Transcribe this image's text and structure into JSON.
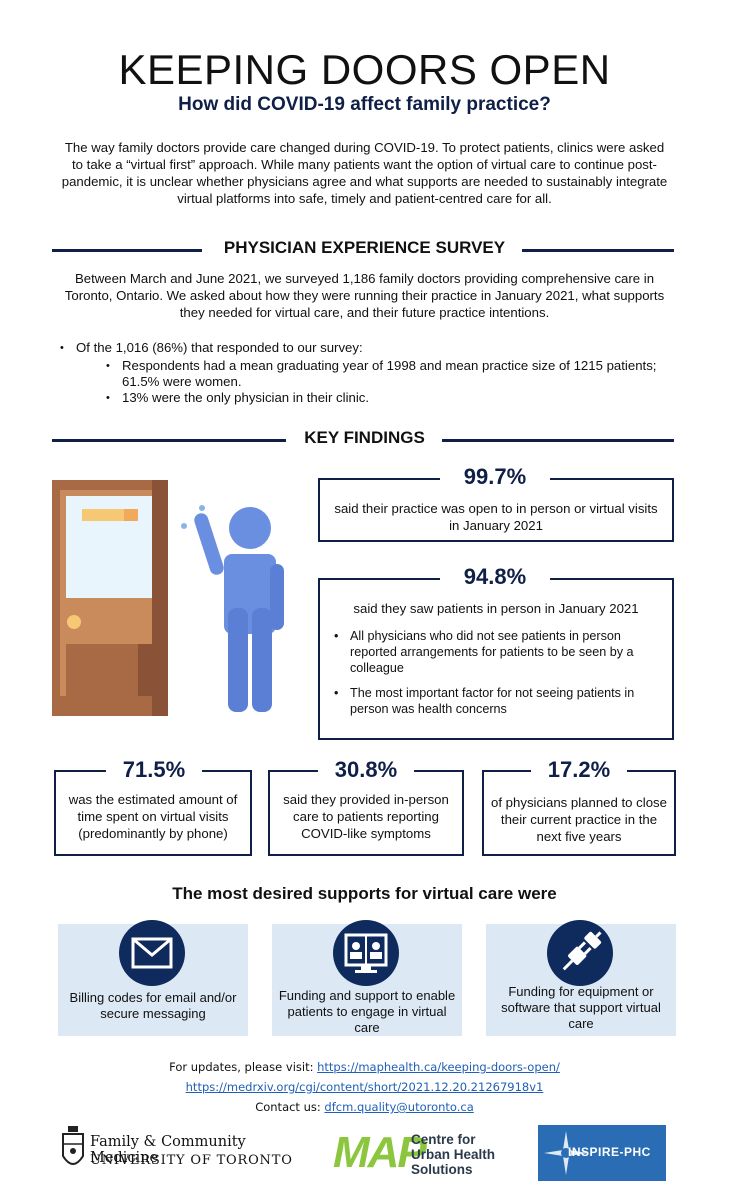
{
  "header": {
    "title": "KEEPING DOORS OPEN",
    "subtitle": "How did COVID-19 affect family practice?",
    "intro": "The way family doctors provide care changed during COVID-19. To protect patients, clinics were asked to take a “virtual first” approach. While many patients want the option of virtual care to continue post-pandemic, it is unclear whether physicians agree and what supports are needed to sustainably integrate virtual platforms into safe, timely and patient-centred care for all."
  },
  "survey": {
    "heading": "PHYSICIAN EXPERIENCE SURVEY",
    "text": "Between March and June 2021, we surveyed 1,186 family doctors providing comprehensive care in Toronto, Ontario. We asked about how they were running their practice in January 2021, what supports they needed for virtual care, and their future practice intentions.",
    "bullet_main": "Of the 1,016 (86%) that responded to our survey:",
    "sub_bullets": [
      "Respondents had a mean graduating year of 1998 and mean practice size of 1215 patients; 61.5% were women.",
      "13% were the only physician in their clinic."
    ]
  },
  "findings": {
    "heading": "KEY FINDINGS",
    "stat1": {
      "value": "99.7%",
      "text": "said their practice was open to in person or virtual visits in January 2021"
    },
    "stat2": {
      "value": "94.8%",
      "text": "said they saw patients in person in January 2021",
      "items": [
        "All physicians who did not see patients in person reported arrangements for patients to be seen by a colleague",
        "The most important factor for not seeing patients in person was health concerns"
      ]
    },
    "stat3": {
      "value": "71.5%",
      "text": "was the estimated amount of time spent on virtual visits (predominantly by phone)"
    },
    "stat4": {
      "value": "30.8%",
      "text": "said they provided in-person care to patients reporting COVID-like symptoms"
    },
    "stat5": {
      "value": "17.2%",
      "text": "of physicians planned to close their current practice in the next five years"
    }
  },
  "supports": {
    "heading": "The most desired supports for virtual care were",
    "cards": [
      {
        "icon": "envelope-icon",
        "text": "Billing codes for email and/or secure messaging"
      },
      {
        "icon": "video-call-icon",
        "text": "Funding and support to enable patients to engage in virtual care"
      },
      {
        "icon": "plug-icon",
        "text": "Funding for equipment or software that support virtual care"
      }
    ]
  },
  "footer": {
    "updates_label": "For updates, please visit: ",
    "updates_link": "https://maphealth.ca/keeping-doors-open/",
    "paper_link": "https://medrxiv.org/cgi/content/short/2021.12.20.21267918v1",
    "contact_label": "Contact us: ",
    "contact_email": "dfcm.quality@utoronto.ca"
  },
  "logos": {
    "uoft_line1": "Family & Community Medicine",
    "uoft_line2": "UNIVERSITY OF TORONTO",
    "map_mark": "MAP",
    "map_line1": "Centre for",
    "map_line2": "Urban Health",
    "map_line3": "Solutions",
    "inspire": "INSPIRE-PHC"
  },
  "colors": {
    "navy": "#0f1f47",
    "light_blue": "#dce8f4",
    "figure_blue": "#6b8fe0",
    "door_brown": "#a86a45"
  }
}
